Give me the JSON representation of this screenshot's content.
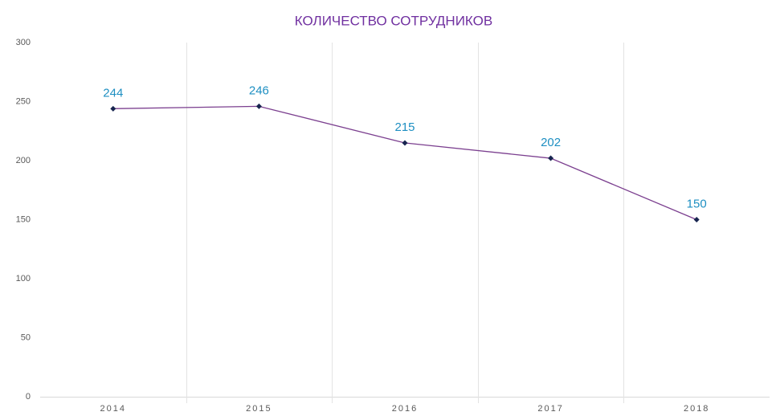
{
  "chart_data": {
    "type": "line",
    "title": "КОЛИЧЕСТВО СОТРУДНИКОВ",
    "categories": [
      "2014",
      "2015",
      "2016",
      "2017",
      "2018"
    ],
    "values": [
      244,
      246,
      215,
      202,
      150
    ],
    "color": "#7b3f8f",
    "marker_color": "#17244f",
    "label_color": "#1e8fc2",
    "ylim": [
      0,
      300
    ],
    "yticks": [
      0,
      50,
      100,
      150,
      200,
      250,
      300
    ]
  }
}
